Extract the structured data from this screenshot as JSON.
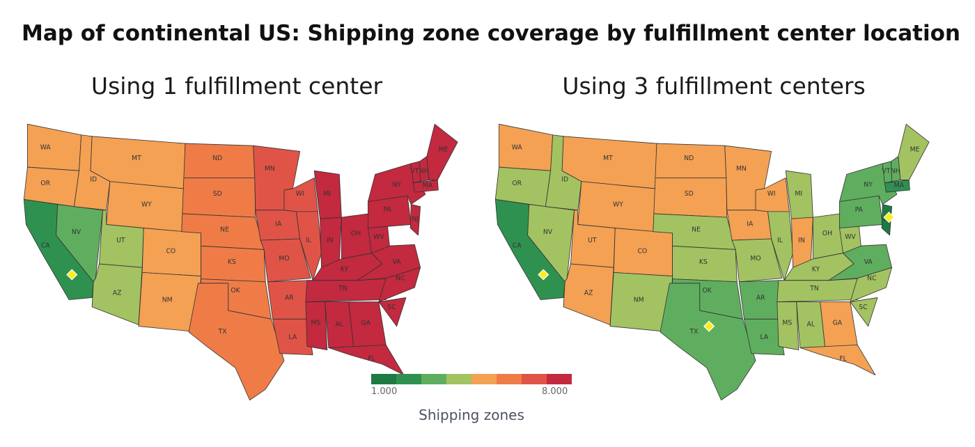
{
  "title": "Map of continental US: Shipping zone coverage by fulfillment center location",
  "maps": [
    {
      "subtitle": "Using 1 fulfillment center",
      "centers": [
        "CA"
      ],
      "zones": {
        "WA": 5,
        "OR": 5,
        "ID": 5,
        "MT": 5,
        "WY": 5,
        "CA": 2,
        "NV": 3,
        "UT": 4,
        "AZ": 4,
        "CO": 5,
        "NM": 5,
        "ND": 6,
        "SD": 6,
        "NE": 6,
        "KS": 6,
        "OK": 6,
        "TX": 6,
        "MN": 7,
        "IA": 7,
        "MO": 7,
        "AR": 7,
        "LA": 7,
        "WI": 7,
        "IL": 7,
        "MI": 8,
        "IN": 8,
        "OH": 8,
        "KY": 8,
        "TN": 8,
        "MS": 8,
        "AL": 8,
        "GA": 8,
        "FL": 8,
        "SC": 8,
        "NC": 8,
        "VA": 8,
        "WV": 8,
        "PA": 8,
        "NY": 8,
        "VT": 8,
        "NH": 8,
        "ME": 8,
        "MA": 8,
        "NJ": 8
      }
    },
    {
      "subtitle": "Using 3 fulfillment centers",
      "centers": [
        "CA",
        "TX",
        "NJ"
      ],
      "zones": {
        "WA": 5,
        "OR": 4,
        "ID": 4,
        "MT": 5,
        "WY": 5,
        "CA": 2,
        "NV": 4,
        "UT": 5,
        "AZ": 5,
        "CO": 5,
        "NM": 4,
        "ND": 5,
        "SD": 5,
        "NE": 4,
        "KS": 4,
        "OK": 3,
        "TX": 3,
        "MN": 5,
        "IA": 5,
        "MO": 4,
        "AR": 3,
        "LA": 3,
        "WI": 5,
        "IL": 4,
        "MI": 4,
        "IN": 5,
        "OH": 4,
        "KY": 4,
        "TN": 4,
        "MS": 4,
        "AL": 4,
        "GA": 5,
        "FL": 5,
        "SC": 4,
        "NC": 4,
        "VA": 3,
        "WV": 4,
        "PA": 3,
        "NY": 3,
        "VT": 3,
        "NH": 3,
        "ME": 4,
        "MA": 2,
        "NJ": 1
      }
    }
  ],
  "colors": [
    "#1e7a43",
    "#2f9150",
    "#5fae5f",
    "#a3c262",
    "#f4a154",
    "#ef7c47",
    "#e05447",
    "#c3293f"
  ],
  "center_marker_color": "#ffec1c",
  "legend": {
    "title": "Shipping zones",
    "min_label": "1.000",
    "max_label": "8.000"
  }
}
